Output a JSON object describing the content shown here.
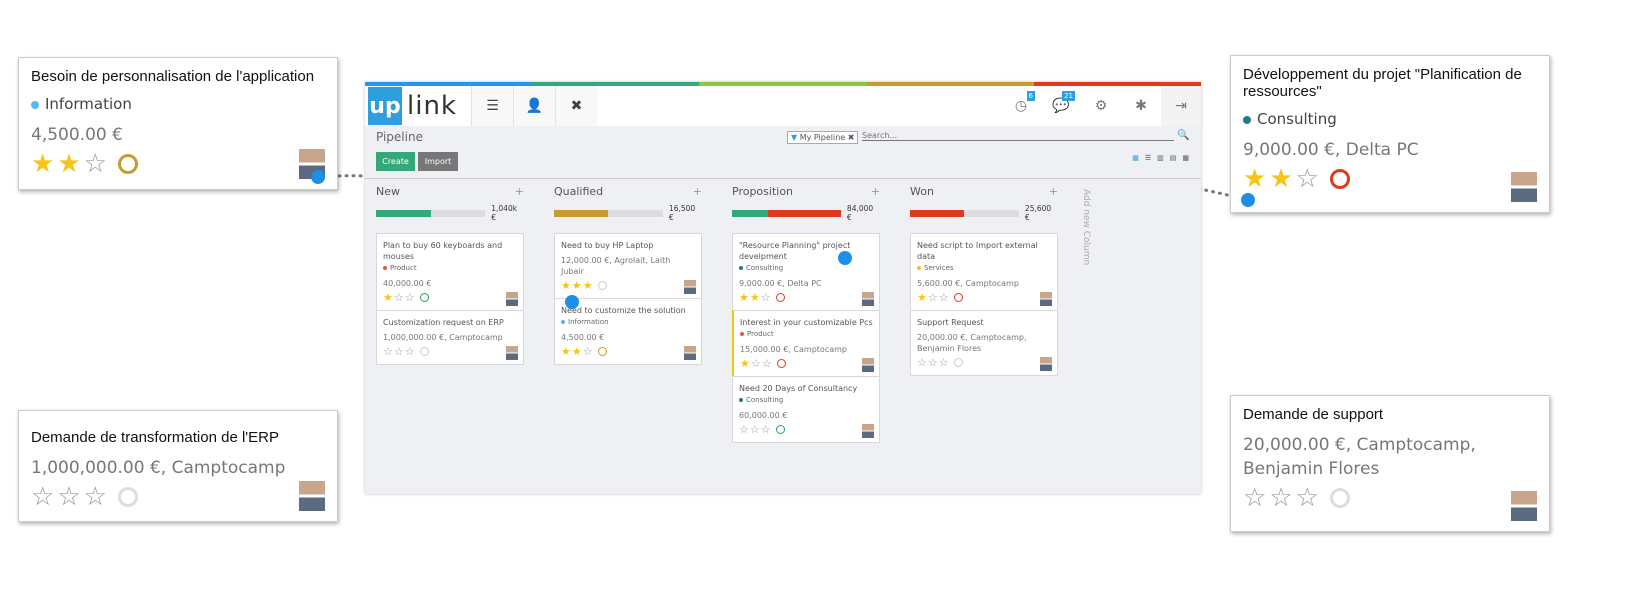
{
  "topbar_colors": [
    "#2196f3",
    "#34a77b",
    "#8cc63f",
    "#c99a2e",
    "#e03a1e"
  ],
  "app": {
    "logo": {
      "up": "up",
      "link": "link"
    },
    "nav_icons": [
      "menu-icon",
      "user-icon",
      "close-icon"
    ],
    "nav_glyphs": [
      "☰",
      "👤",
      "✖"
    ],
    "right_icons": [
      {
        "name": "clock-icon",
        "glyph": "◷",
        "badge": "6"
      },
      {
        "name": "chat-icon",
        "glyph": "💬",
        "badge": "21"
      },
      {
        "name": "gears-icon",
        "glyph": "⚙",
        "badge": null
      },
      {
        "name": "bug-icon",
        "glyph": "✱",
        "badge": null
      },
      {
        "name": "logout-icon",
        "glyph": "⇥",
        "badge": null
      }
    ],
    "page_title": "Pipeline",
    "filter": "My Pipeline",
    "search_placeholder": "Search...",
    "create": "Create",
    "import": "Import",
    "views": [
      "▦",
      "☰",
      "▥",
      "▤",
      "▦"
    ],
    "add_column": "Add new Column"
  },
  "columns": [
    {
      "title": "New",
      "total": "1,040k €",
      "progress": [
        {
          "color": "#34a77b",
          "pct": 50
        }
      ],
      "cards": [
        {
          "title": "Plan to buy 60 keyboards and mouses",
          "tag": "Product",
          "tag_color": "#e8553a",
          "amount": "40,000.00 €",
          "stars": 1,
          "clock": "#21a35a"
        },
        {
          "title": "Customization request on ERP",
          "tag": null,
          "amount": "1,000,000.00 €, Camptocamp",
          "stars": 0,
          "clock": "#ccc"
        }
      ]
    },
    {
      "title": "Qualified",
      "total": "16,500 €",
      "progress": [
        {
          "color": "#c99a2e",
          "pct": 50
        }
      ],
      "cards": [
        {
          "title": "Need to buy HP Laptop",
          "tag": null,
          "amount": "12,000.00 €, Agrolait, Laith Jubair",
          "stars": 3,
          "clock": "#ccc"
        },
        {
          "title": "Need to customize the solution",
          "tag": "Information",
          "tag_color": "#5bb5f0",
          "amount": "4,500.00 €",
          "stars": 2,
          "clock": "#c99a2e"
        }
      ]
    },
    {
      "title": "Proposition",
      "total": "84,000 €",
      "progress": [
        {
          "color": "#34a77b",
          "pct": 33
        },
        {
          "color": "#e03a1e",
          "pct": 67
        }
      ],
      "cards": [
        {
          "title": "\"Resource Planning\" project develpment",
          "tag": "Consulting",
          "tag_color": "#1f7a8c",
          "amount": "9,000.00 €, Delta PC",
          "stars": 2,
          "clock": "#e03a1e"
        },
        {
          "title": "Interest in your customizable Pcs",
          "tag": "Product",
          "tag_color": "#e8553a",
          "amount": "15,000.00 €, Camptocamp",
          "stars": 1,
          "clock": "#e03a1e",
          "highlight": "#f5c517"
        },
        {
          "title": "Need 20 Days of Consultancy",
          "tag": "Consulting",
          "tag_color": "#1f7a8c",
          "amount": "60,000.00 €",
          "stars": 0,
          "clock": "#21a35a"
        }
      ]
    },
    {
      "title": "Won",
      "total": "25,600 €",
      "progress": [
        {
          "color": "#e03a1e",
          "pct": 50
        }
      ],
      "cards": [
        {
          "title": "Need script to Import external data",
          "tag": "Services",
          "tag_color": "#f5c517",
          "amount": "5,600.00 €, Camptocamp",
          "stars": 1,
          "clock": "#e03a1e"
        },
        {
          "title": "Support Request",
          "tag": null,
          "amount": "20,000.00 €, Camptocamp, Benjamin Flores",
          "stars": 0,
          "clock": "#ccc"
        }
      ]
    }
  ],
  "callouts": [
    {
      "title": "Besoin de personnalisation de l'application",
      "tag": "Information",
      "tag_color": "#5bb5f0",
      "amount": "4,500.00 €",
      "stars": 2,
      "clock": "#c99a2e"
    },
    {
      "title": "Demande de transformation de l'ERP",
      "tag": null,
      "amount": "1,000,000.00 €, Camptocamp",
      "stars": 0,
      "clock": "#ddd"
    },
    {
      "title": "Développement du projet \"Planification de ressources\"",
      "tag": "Consulting",
      "tag_color": "#1f7a8c",
      "amount": "9,000.00 €, Delta PC",
      "stars": 2,
      "clock": "#e03a1e"
    },
    {
      "title": "Demande de support",
      "tag": null,
      "amount": "20,000.00 €, Camptocamp, Benjamin Flores",
      "stars": 0,
      "clock": "#ddd"
    }
  ]
}
